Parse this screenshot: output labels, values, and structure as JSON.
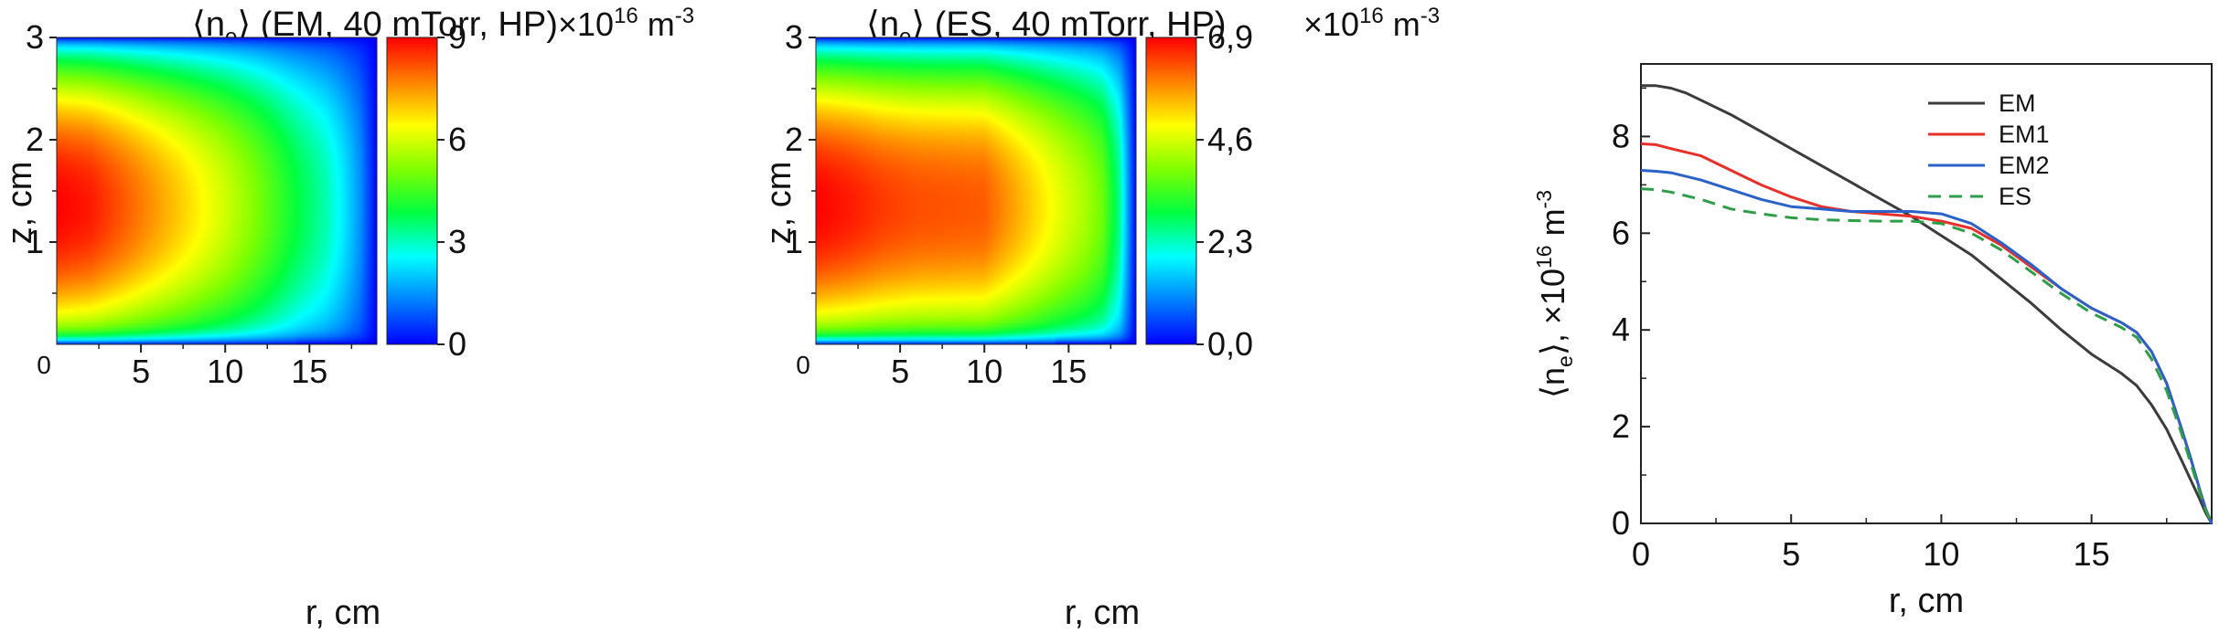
{
  "chart_data": [
    {
      "type": "heatmap",
      "title_quantity": "n",
      "title_subscript": "e",
      "title_rest": "(EM, 40 mTorr, HP)",
      "scale_mantissa": "×10",
      "scale_exponent": "16",
      "scale_unit": "m",
      "scale_unit_exponent": "-3",
      "xlabel": "r, cm",
      "ylabel": "z, cm",
      "xlim": [
        0,
        19
      ],
      "ylim": [
        0,
        3
      ],
      "x_ticks": [
        0,
        5,
        10,
        15
      ],
      "x_tick_labels": [
        "0",
        "5",
        "10",
        "15"
      ],
      "y_ticks": [
        1,
        2,
        3
      ],
      "y_tick_labels": [
        "1",
        "2",
        "3"
      ],
      "colorbar_range": [
        0,
        9
      ],
      "colorbar_ticks": [
        0,
        3,
        6,
        9
      ],
      "colorbar_tick_labels": [
        "0",
        "3",
        "6",
        "9"
      ],
      "peak_value": 9,
      "peak_location": {
        "r": 0,
        "z": 1.35
      },
      "axial_profile": {
        "r": [
          0,
          2,
          4,
          6,
          8,
          10,
          12,
          14,
          16,
          17,
          18,
          18.6,
          19
        ],
        "value": [
          9.0,
          8.75,
          8.1,
          7.4,
          6.7,
          5.95,
          5.05,
          4.0,
          3.1,
          2.4,
          1.5,
          0.6,
          0.0
        ]
      },
      "colormap": [
        "#0000ff",
        "#0080ff",
        "#00ffff",
        "#00ff40",
        "#80ff00",
        "#ffff00",
        "#ff8000",
        "#ff0000"
      ]
    },
    {
      "type": "heatmap",
      "title_quantity": "n",
      "title_subscript": "e",
      "title_rest": "(ES, 40 mTorr, HP)",
      "scale_mantissa": "×10",
      "scale_exponent": "16",
      "scale_unit": "m",
      "scale_unit_exponent": "-3",
      "xlabel": "r, cm",
      "ylabel": "z, cm",
      "xlim": [
        0,
        19
      ],
      "ylim": [
        0,
        3
      ],
      "x_ticks": [
        0,
        5,
        10,
        15
      ],
      "x_tick_labels": [
        "0",
        "5",
        "10",
        "15"
      ],
      "y_ticks": [
        1,
        2,
        3
      ],
      "y_tick_labels": [
        "1",
        "2",
        "3"
      ],
      "colorbar_range": [
        0,
        6.9
      ],
      "colorbar_ticks": [
        0,
        2.3,
        4.6,
        6.9
      ],
      "colorbar_tick_labels": [
        "0,0",
        "2,3",
        "4,6",
        "6,9"
      ],
      "peak_value": 6.9,
      "peak_location": {
        "r": 0,
        "z": 1.35
      },
      "axial_profile": {
        "r": [
          0,
          2,
          4,
          6,
          8,
          10,
          12,
          14,
          16,
          17,
          18,
          18.6,
          19
        ],
        "value": [
          6.9,
          6.7,
          6.45,
          6.3,
          6.25,
          6.2,
          5.55,
          4.9,
          4.25,
          3.8,
          2.6,
          1.0,
          0.0
        ]
      },
      "colormap": [
        "#0000ff",
        "#0080ff",
        "#00ffff",
        "#00ff40",
        "#80ff00",
        "#ffff00",
        "#ff8000",
        "#ff0000"
      ]
    },
    {
      "type": "line",
      "ylabel_quantity": "n",
      "ylabel_subscript": "e",
      "ylabel_rest": ", ×10",
      "ylabel_exponent": "16",
      "ylabel_unit": " m",
      "ylabel_unit_exponent": "-3",
      "xlabel": "r, cm",
      "xlim": [
        0,
        19
      ],
      "ylim": [
        0,
        9.5
      ],
      "x_ticks": [
        0,
        5,
        10,
        15
      ],
      "x_tick_labels": [
        "0",
        "5",
        "10",
        "15"
      ],
      "y_ticks": [
        0,
        2,
        4,
        6,
        8
      ],
      "y_tick_labels": [
        "0",
        "2",
        "4",
        "6",
        "8"
      ],
      "legend_position": "top-right",
      "series": [
        {
          "name": "EM",
          "color": "#3c3c3c",
          "dash": "solid",
          "x": [
            0,
            0.5,
            1,
            1.5,
            2,
            3,
            4,
            5,
            6,
            7,
            8,
            9,
            10,
            11,
            12,
            13,
            14,
            15,
            16,
            16.5,
            17,
            17.5,
            18,
            18.3,
            18.6,
            18.8,
            19
          ],
          "y": [
            9.05,
            9.05,
            9.0,
            8.9,
            8.75,
            8.45,
            8.1,
            7.75,
            7.4,
            7.05,
            6.7,
            6.35,
            5.95,
            5.55,
            5.05,
            4.55,
            4.0,
            3.5,
            3.1,
            2.85,
            2.45,
            1.95,
            1.3,
            0.9,
            0.5,
            0.22,
            0.0
          ]
        },
        {
          "name": "EM1",
          "color": "#e8302a",
          "dash": "solid",
          "x": [
            0,
            0.5,
            1,
            2,
            3,
            4,
            5,
            6,
            7,
            8,
            9,
            10,
            11,
            12,
            13,
            14,
            15,
            16,
            16.5,
            17,
            17.5,
            18,
            18.3,
            18.6,
            18.8,
            19
          ],
          "y": [
            7.85,
            7.83,
            7.75,
            7.6,
            7.3,
            7.0,
            6.75,
            6.55,
            6.45,
            6.4,
            6.35,
            6.25,
            6.1,
            5.75,
            5.3,
            4.85,
            4.45,
            4.15,
            3.95,
            3.55,
            2.9,
            1.95,
            1.35,
            0.7,
            0.3,
            0.0
          ]
        },
        {
          "name": "EM2",
          "color": "#2a62c8",
          "dash": "solid",
          "x": [
            0,
            0.5,
            1,
            2,
            3,
            4,
            5,
            6,
            7,
            8,
            9,
            10,
            11,
            12,
            13,
            14,
            15,
            16,
            16.5,
            17,
            17.5,
            18,
            18.3,
            18.6,
            18.8,
            19
          ],
          "y": [
            7.3,
            7.28,
            7.25,
            7.1,
            6.9,
            6.7,
            6.55,
            6.5,
            6.45,
            6.45,
            6.45,
            6.4,
            6.2,
            5.8,
            5.35,
            4.85,
            4.45,
            4.15,
            3.95,
            3.55,
            2.9,
            1.95,
            1.35,
            0.7,
            0.3,
            0.0
          ]
        },
        {
          "name": "ES",
          "color": "#2e9e48",
          "dash": "dashed",
          "x": [
            0,
            0.5,
            1,
            2,
            3,
            4,
            5,
            6,
            7,
            8,
            9,
            10,
            11,
            12,
            13,
            14,
            15,
            16,
            16.5,
            17,
            17.5,
            18,
            18.3,
            18.6,
            18.8,
            19
          ],
          "y": [
            6.92,
            6.9,
            6.85,
            6.7,
            6.5,
            6.4,
            6.32,
            6.28,
            6.26,
            6.25,
            6.25,
            6.2,
            6.0,
            5.65,
            5.2,
            4.75,
            4.35,
            4.05,
            3.85,
            3.4,
            2.75,
            1.85,
            1.25,
            0.65,
            0.28,
            0.0
          ]
        }
      ]
    }
  ]
}
